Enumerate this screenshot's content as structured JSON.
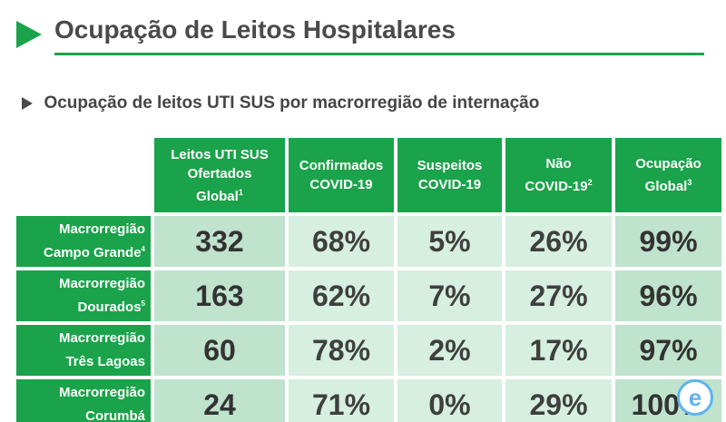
{
  "header": {
    "title": "Ocupação de Leitos Hospitalares"
  },
  "subtitle": "Ocupação de leitos UTI SUS por macrorregião de internação",
  "table": {
    "columns": [
      {
        "label": "Leitos UTI SUS Ofertados Global",
        "lines": [
          "Leitos UTI SUS",
          "Ofertados",
          "Global"
        ],
        "sup": "1"
      },
      {
        "label": "Confirmados COVID-19",
        "lines": [
          "Confirmados",
          "COVID-19"
        ],
        "sup": ""
      },
      {
        "label": "Suspeitos COVID-19",
        "lines": [
          "Suspeitos",
          "COVID-19"
        ],
        "sup": ""
      },
      {
        "label": "Não COVID-19",
        "lines": [
          "Não",
          "COVID-19"
        ],
        "sup": "2"
      },
      {
        "label": "Ocupação Global",
        "lines": [
          "Ocupação",
          "Global"
        ],
        "sup": "3"
      }
    ],
    "rows": [
      {
        "line1": "Macrorregião",
        "line2": "Campo Grande",
        "sup": "4",
        "values": [
          "332",
          "68%",
          "5%",
          "26%",
          "99%"
        ]
      },
      {
        "line1": "Macrorregião",
        "line2": "Dourados",
        "sup": "5",
        "values": [
          "163",
          "62%",
          "7%",
          "27%",
          "96%"
        ]
      },
      {
        "line1": "Macrorregião",
        "line2": "Três Lagoas",
        "sup": "",
        "values": [
          "60",
          "78%",
          "2%",
          "17%",
          "97%"
        ]
      },
      {
        "line1": "Macrorregião",
        "line2": "Corumbá",
        "sup": "",
        "values": [
          "24",
          "71%",
          "0%",
          "29%",
          "100%"
        ]
      }
    ]
  },
  "badge": {
    "glyph": "e",
    "icon": "e-circle-icon"
  },
  "colors": {
    "accent": "#1aa34a",
    "cell": "#d6efe0",
    "cell_emphasis": "#bfe3cd",
    "badge": "#5fb3ec"
  }
}
